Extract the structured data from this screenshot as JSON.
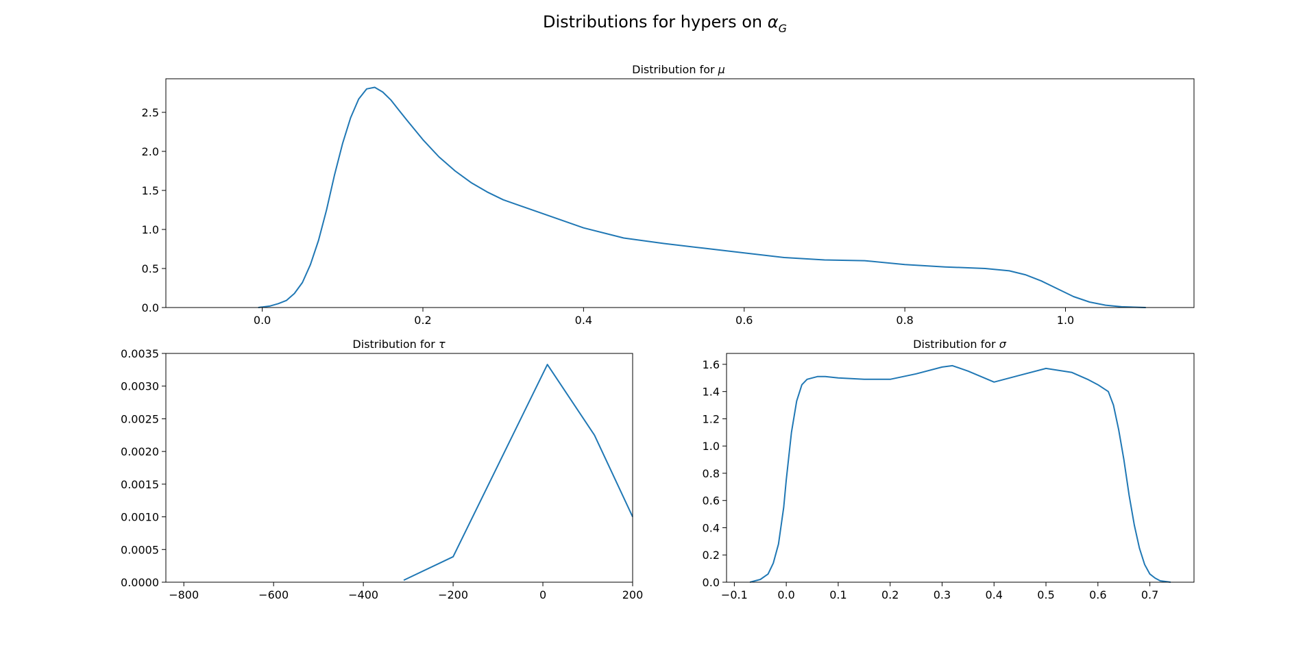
{
  "figure": {
    "suptitle_prefix": "Distributions for hypers on ",
    "suptitle_symbol": "α",
    "suptitle_subscript": "G"
  },
  "style": {
    "line_color": "#1f77b4"
  },
  "chart_data": [
    {
      "id": "mu",
      "type": "line",
      "title_prefix": "Distribution for ",
      "title_symbol": "μ",
      "xlabel": "",
      "ylabel": "",
      "xlim": [
        -0.12,
        1.16
      ],
      "ylim": [
        0,
        2.93
      ],
      "xticks": [
        0.0,
        0.2,
        0.4,
        0.6,
        0.8,
        1.0
      ],
      "xtick_labels": [
        "0.0",
        "0.2",
        "0.4",
        "0.6",
        "0.8",
        "1.0"
      ],
      "yticks": [
        0.0,
        0.5,
        1.0,
        1.5,
        2.0,
        2.5
      ],
      "ytick_labels": [
        "0.0",
        "0.5",
        "1.0",
        "1.5",
        "2.0",
        "2.5"
      ],
      "grid": false,
      "series": [
        {
          "x": [
            -0.005,
            0.01,
            0.02,
            0.03,
            0.04,
            0.05,
            0.06,
            0.07,
            0.08,
            0.09,
            0.1,
            0.11,
            0.12,
            0.13,
            0.14,
            0.15,
            0.16,
            0.17,
            0.18,
            0.2,
            0.22,
            0.24,
            0.26,
            0.28,
            0.3,
            0.35,
            0.4,
            0.45,
            0.5,
            0.55,
            0.6,
            0.65,
            0.7,
            0.75,
            0.8,
            0.85,
            0.9,
            0.93,
            0.95,
            0.97,
            0.99,
            1.01,
            1.03,
            1.05,
            1.07,
            1.1
          ],
          "y": [
            0.0,
            0.02,
            0.05,
            0.09,
            0.18,
            0.32,
            0.55,
            0.86,
            1.25,
            1.7,
            2.1,
            2.43,
            2.67,
            2.8,
            2.82,
            2.76,
            2.66,
            2.53,
            2.4,
            2.15,
            1.93,
            1.75,
            1.6,
            1.48,
            1.38,
            1.2,
            1.02,
            0.89,
            0.82,
            0.76,
            0.7,
            0.64,
            0.61,
            0.6,
            0.55,
            0.52,
            0.5,
            0.47,
            0.42,
            0.34,
            0.24,
            0.14,
            0.07,
            0.03,
            0.01,
            0.0
          ]
        }
      ]
    },
    {
      "id": "tau",
      "type": "line",
      "title_prefix": "Distribution for ",
      "title_symbol": "τ",
      "xlabel": "",
      "ylabel": "",
      "xlim": [
        -840,
        200
      ],
      "ylim": [
        0,
        0.0035
      ],
      "xticks": [
        -800,
        -600,
        -400,
        -200,
        0,
        200
      ],
      "xtick_labels": [
        "−800",
        "−600",
        "−400",
        "−200",
        "0",
        "200"
      ],
      "yticks": [
        0.0,
        0.0005,
        0.001,
        0.0015,
        0.002,
        0.0025,
        0.003,
        0.0035
      ],
      "ytick_labels": [
        "0.0000",
        "0.0005",
        "0.0010",
        "0.0015",
        "0.0020",
        "0.0025",
        "0.0030",
        "0.0035"
      ],
      "grid": false,
      "series": [
        {
          "x": [
            -310,
            -200,
            10,
            115,
            200
          ],
          "y": [
            3e-05,
            0.00039,
            0.00333,
            0.00225,
            0.001
          ]
        }
      ]
    },
    {
      "id": "sigma",
      "type": "line",
      "title_prefix": "Distribution for ",
      "title_symbol": "σ",
      "xlabel": "",
      "ylabel": "",
      "xlim": [
        -0.115,
        0.785
      ],
      "ylim": [
        0,
        1.68
      ],
      "xticks": [
        -0.1,
        0.0,
        0.1,
        0.2,
        0.3,
        0.4,
        0.5,
        0.6,
        0.7
      ],
      "xtick_labels": [
        "−0.1",
        "0.0",
        "0.1",
        "0.2",
        "0.3",
        "0.4",
        "0.5",
        "0.6",
        "0.7"
      ],
      "yticks": [
        0.0,
        0.2,
        0.4,
        0.6,
        0.8,
        1.0,
        1.2,
        1.4,
        1.6
      ],
      "ytick_labels": [
        "0.0",
        "0.2",
        "0.4",
        "0.6",
        "0.8",
        "1.0",
        "1.2",
        "1.4",
        "1.6"
      ],
      "grid": false,
      "series": [
        {
          "x": [
            -0.07,
            -0.05,
            -0.035,
            -0.025,
            -0.015,
            -0.005,
            0.0,
            0.01,
            0.02,
            0.03,
            0.04,
            0.05,
            0.06,
            0.075,
            0.1,
            0.15,
            0.2,
            0.25,
            0.3,
            0.32,
            0.35,
            0.4,
            0.45,
            0.5,
            0.55,
            0.58,
            0.6,
            0.62,
            0.63,
            0.64,
            0.65,
            0.66,
            0.67,
            0.68,
            0.69,
            0.7,
            0.71,
            0.72,
            0.74
          ],
          "y": [
            0.0,
            0.02,
            0.06,
            0.14,
            0.28,
            0.55,
            0.75,
            1.1,
            1.33,
            1.45,
            1.49,
            1.5,
            1.51,
            1.51,
            1.5,
            1.49,
            1.49,
            1.53,
            1.58,
            1.59,
            1.55,
            1.47,
            1.52,
            1.57,
            1.54,
            1.49,
            1.45,
            1.4,
            1.3,
            1.12,
            0.9,
            0.64,
            0.42,
            0.25,
            0.13,
            0.06,
            0.03,
            0.01,
            0.0
          ]
        }
      ]
    }
  ]
}
